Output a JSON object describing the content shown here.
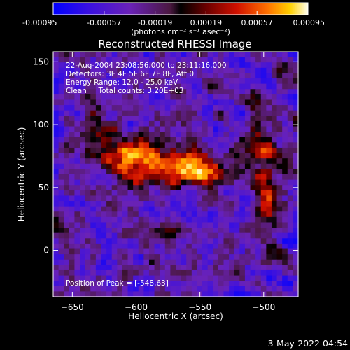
{
  "chart_data": {
    "type": "heatmap",
    "title": "Reconstructed RHESSI Image",
    "xlabel": "Heliocentric X (arcsec)",
    "ylabel": "Heliocentric Y (arcsec)",
    "xlim": [
      -665,
      -473
    ],
    "ylim": [
      -37,
      158
    ],
    "xticks": [
      -650,
      -600,
      -550,
      -500
    ],
    "yticks": [
      0,
      50,
      100,
      150
    ],
    "colorbar": {
      "min": -0.00095,
      "max": 0.00095,
      "ticks": [
        "-0.00095",
        "-0.00057",
        "-0.00019",
        "0.00019",
        "0.00057",
        "0.00095"
      ],
      "unit_label": "(photons cm⁻² s⁻¹ asec⁻²)"
    },
    "annotations": {
      "time_range": "22-Aug-2004 23:08:56.000 to 23:11:16.000",
      "detectors": "Detectors: 3F 4F 5F 6F 7F 8F, Att 0",
      "energy_range": "Energy Range: 12.0 - 25.0 keV",
      "clean_line": "Clean     Total counts: 3.20E+03",
      "peak": "Position of Peak = [-548,63]"
    },
    "peak_position": [
      -548,
      63
    ],
    "grid": false
  },
  "footer": {
    "date": "3-May-2022 04:54"
  }
}
